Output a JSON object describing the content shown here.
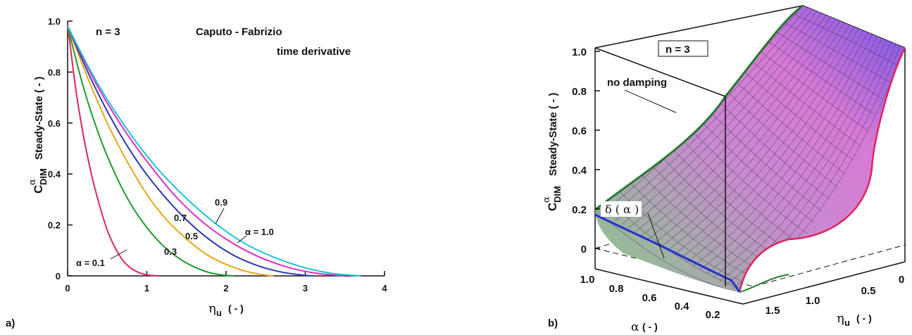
{
  "chart_data": [
    {
      "panel": "a)",
      "type": "line",
      "title": "Caputo - Fabrizio",
      "subtitle": "time derivative",
      "annotation": "n = 3",
      "xlabel": {
        "symbol": "η",
        "sub": "u",
        "unit": "( - )"
      },
      "ylabel": {
        "symbol": "C",
        "sup": "α",
        "sub": "DIM",
        "text": "Steady-State  ( - )"
      },
      "xlim": [
        0,
        4
      ],
      "ylim": [
        0,
        1.0
      ],
      "xticks": [
        "0",
        "1",
        "2",
        "3",
        "4"
      ],
      "yticks": [
        "0",
        "0.2",
        "0.4",
        "0.6",
        "0.8",
        "1.0"
      ],
      "grid": false,
      "series": [
        {
          "name": "α = 0.1",
          "color": "#e0245e",
          "x": [
            0,
            0.1,
            0.2,
            0.3,
            0.4,
            0.5,
            0.6,
            0.7,
            0.8,
            0.9,
            1.0,
            1.1,
            1.15
          ],
          "y": [
            0.99,
            0.74,
            0.55,
            0.4,
            0.28,
            0.18,
            0.11,
            0.06,
            0.03,
            0.013,
            0.004,
            0.001,
            0
          ]
        },
        {
          "name": "0.3",
          "color": "#1e9a2e",
          "x": [
            0,
            0.2,
            0.4,
            0.6,
            0.8,
            1.0,
            1.2,
            1.4,
            1.6,
            1.8,
            2.0,
            2.1
          ],
          "y": [
            0.98,
            0.74,
            0.55,
            0.4,
            0.28,
            0.19,
            0.12,
            0.07,
            0.035,
            0.012,
            0.002,
            0
          ]
        },
        {
          "name": "0.5",
          "color": "#e6a817",
          "x": [
            0,
            0.25,
            0.5,
            0.75,
            1.0,
            1.25,
            1.5,
            1.75,
            2.0,
            2.25,
            2.5,
            2.6
          ],
          "y": [
            0.98,
            0.78,
            0.6,
            0.45,
            0.32,
            0.22,
            0.145,
            0.085,
            0.045,
            0.018,
            0.003,
            0
          ]
        },
        {
          "name": "0.7",
          "color": "#2b36b8",
          "x": [
            0,
            0.3,
            0.6,
            0.9,
            1.2,
            1.5,
            1.8,
            2.1,
            2.4,
            2.7,
            3.0,
            3.1
          ],
          "y": [
            0.98,
            0.77,
            0.59,
            0.44,
            0.32,
            0.22,
            0.14,
            0.08,
            0.04,
            0.015,
            0.002,
            0
          ]
        },
        {
          "name": "0.9",
          "color": "#e02ec8",
          "x": [
            0,
            0.35,
            0.7,
            1.05,
            1.4,
            1.75,
            2.1,
            2.45,
            2.8,
            3.15,
            3.5
          ],
          "y": [
            0.98,
            0.76,
            0.58,
            0.43,
            0.3,
            0.2,
            0.125,
            0.07,
            0.032,
            0.01,
            0
          ]
        },
        {
          "name": "α = 1.0",
          "color": "#19c4d4",
          "x": [
            0,
            0.37,
            0.74,
            1.11,
            1.48,
            1.85,
            2.22,
            2.59,
            2.96,
            3.33,
            3.7
          ],
          "y": [
            0.98,
            0.76,
            0.58,
            0.43,
            0.31,
            0.21,
            0.13,
            0.075,
            0.035,
            0.01,
            0
          ]
        }
      ]
    },
    {
      "panel": "b)",
      "type": "surface",
      "annotation": "n = 3",
      "labels": {
        "no_damping": "no damping",
        "delta": "δ ( α )"
      },
      "xlabel": {
        "symbol": "α",
        "unit": "( - )"
      },
      "ylabel": {
        "symbol": "η",
        "sub": "u",
        "unit": "( - )"
      },
      "zlabel": {
        "symbol": "C",
        "sup": "α",
        "sub": "DIM",
        "text": "Steady-State  ( - )"
      },
      "alpha_ticks": [
        "1.0",
        "0.8",
        "0.6",
        "0.4",
        "0.2"
      ],
      "eta_ticks": [
        "1.5",
        "1.0",
        "0.5",
        "0"
      ],
      "z_ticks": [
        "0",
        "0.2",
        "0.4",
        "0.6",
        "0.8",
        "1.0"
      ],
      "colors": {
        "no_damping": "#237a2e",
        "edge_alpha_min": "#e0245e",
        "delta_curve": "#2233cc",
        "surface_low": "#7fd07f",
        "surface_mid": "#d77ad6",
        "surface_high": "#6a4fe8"
      }
    }
  ]
}
